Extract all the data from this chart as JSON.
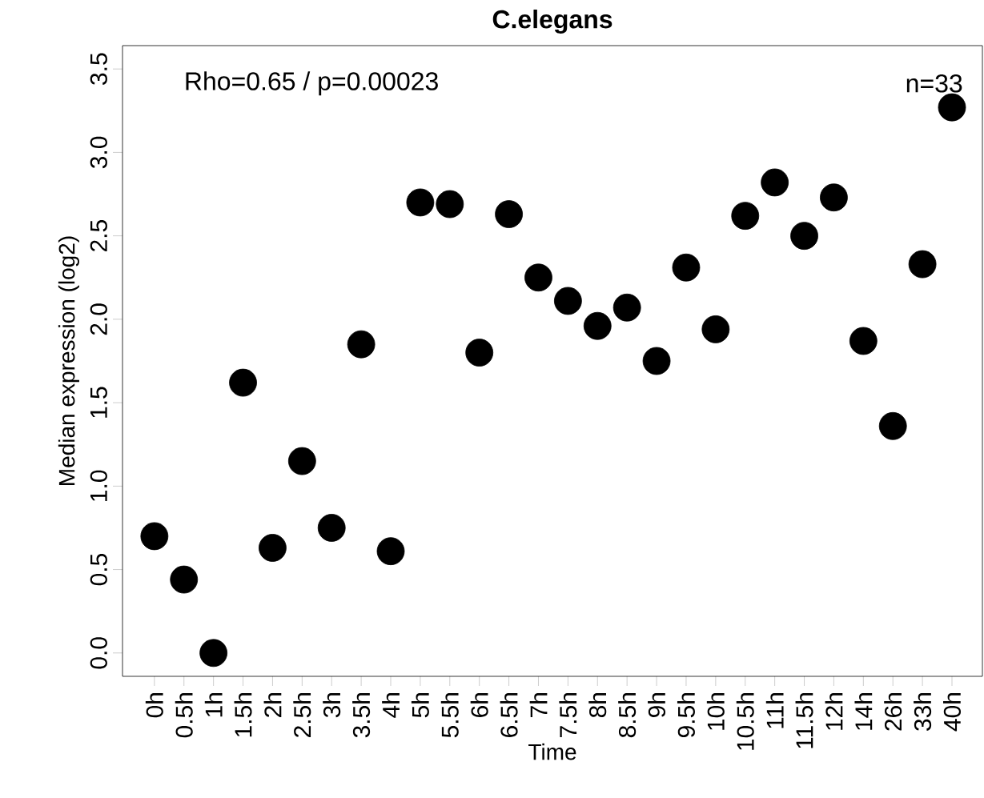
{
  "chart_data": {
    "type": "scatter",
    "title": "C.elegans",
    "xlabel": "Time",
    "ylabel": "Median expression (log2)",
    "annotations": [
      "Rho=0.65 / p=0.00023",
      "n=33"
    ],
    "categories": [
      "0h",
      "0.5h",
      "1h",
      "1.5h",
      "2h",
      "2.5h",
      "3h",
      "3.5h",
      "4h",
      "5h",
      "5.5h",
      "6h",
      "6.5h",
      "7h",
      "7.5h",
      "8h",
      "8.5h",
      "9h",
      "9.5h",
      "10h",
      "10.5h",
      "11h",
      "11.5h",
      "12h",
      "14h",
      "26h",
      "33h",
      "40h"
    ],
    "values": [
      0.7,
      0.44,
      0.0,
      1.62,
      0.63,
      1.15,
      0.75,
      1.85,
      0.61,
      2.7,
      2.69,
      1.8,
      2.63,
      2.25,
      2.11,
      1.96,
      2.07,
      1.75,
      2.31,
      1.94,
      2.62,
      2.82,
      2.5,
      2.73,
      1.87,
      1.36,
      2.33,
      3.27
    ],
    "color": "#000000",
    "marker": "circle",
    "ylim": [
      -0.14,
      3.64
    ],
    "yticks": [
      {
        "value": 0,
        "label": "0.0"
      },
      0.5,
      {
        "value": 1,
        "label": "1.0"
      },
      1.5,
      {
        "value": 2,
        "label": "2.0"
      },
      2.5,
      {
        "value": 3,
        "label": "3.0"
      },
      3.5
    ],
    "grid": false
  }
}
